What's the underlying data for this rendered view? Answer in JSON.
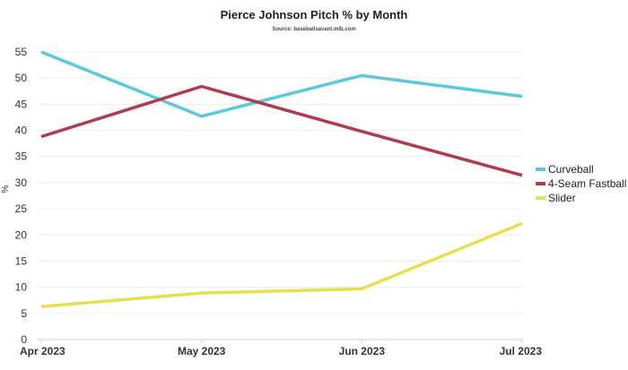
{
  "chart_data": {
    "type": "line",
    "title": "Pierce Johnson Pitch % by Month",
    "subtitle": "Source: baseballsavant.mlb.com",
    "xlabel": "",
    "ylabel": "%",
    "categories": [
      "Apr 2023",
      "May 2023",
      "Jun 2023",
      "Jul 2023"
    ],
    "ylim": [
      0,
      55
    ],
    "yticks": [
      0,
      5,
      10,
      15,
      20,
      25,
      30,
      35,
      40,
      45,
      50,
      55
    ],
    "grid": true,
    "legend_position": "right",
    "series": [
      {
        "name": "Curveball",
        "color": "#5bc8dc",
        "values": [
          55.0,
          42.7,
          50.5,
          46.5
        ]
      },
      {
        "name": "4-Seam Fastball",
        "color": "#b23a4e",
        "values": [
          38.8,
          48.4,
          39.8,
          31.4
        ]
      },
      {
        "name": "Slider",
        "color": "#e6e04a",
        "values": [
          6.3,
          8.9,
          9.7,
          22.2
        ]
      }
    ]
  }
}
